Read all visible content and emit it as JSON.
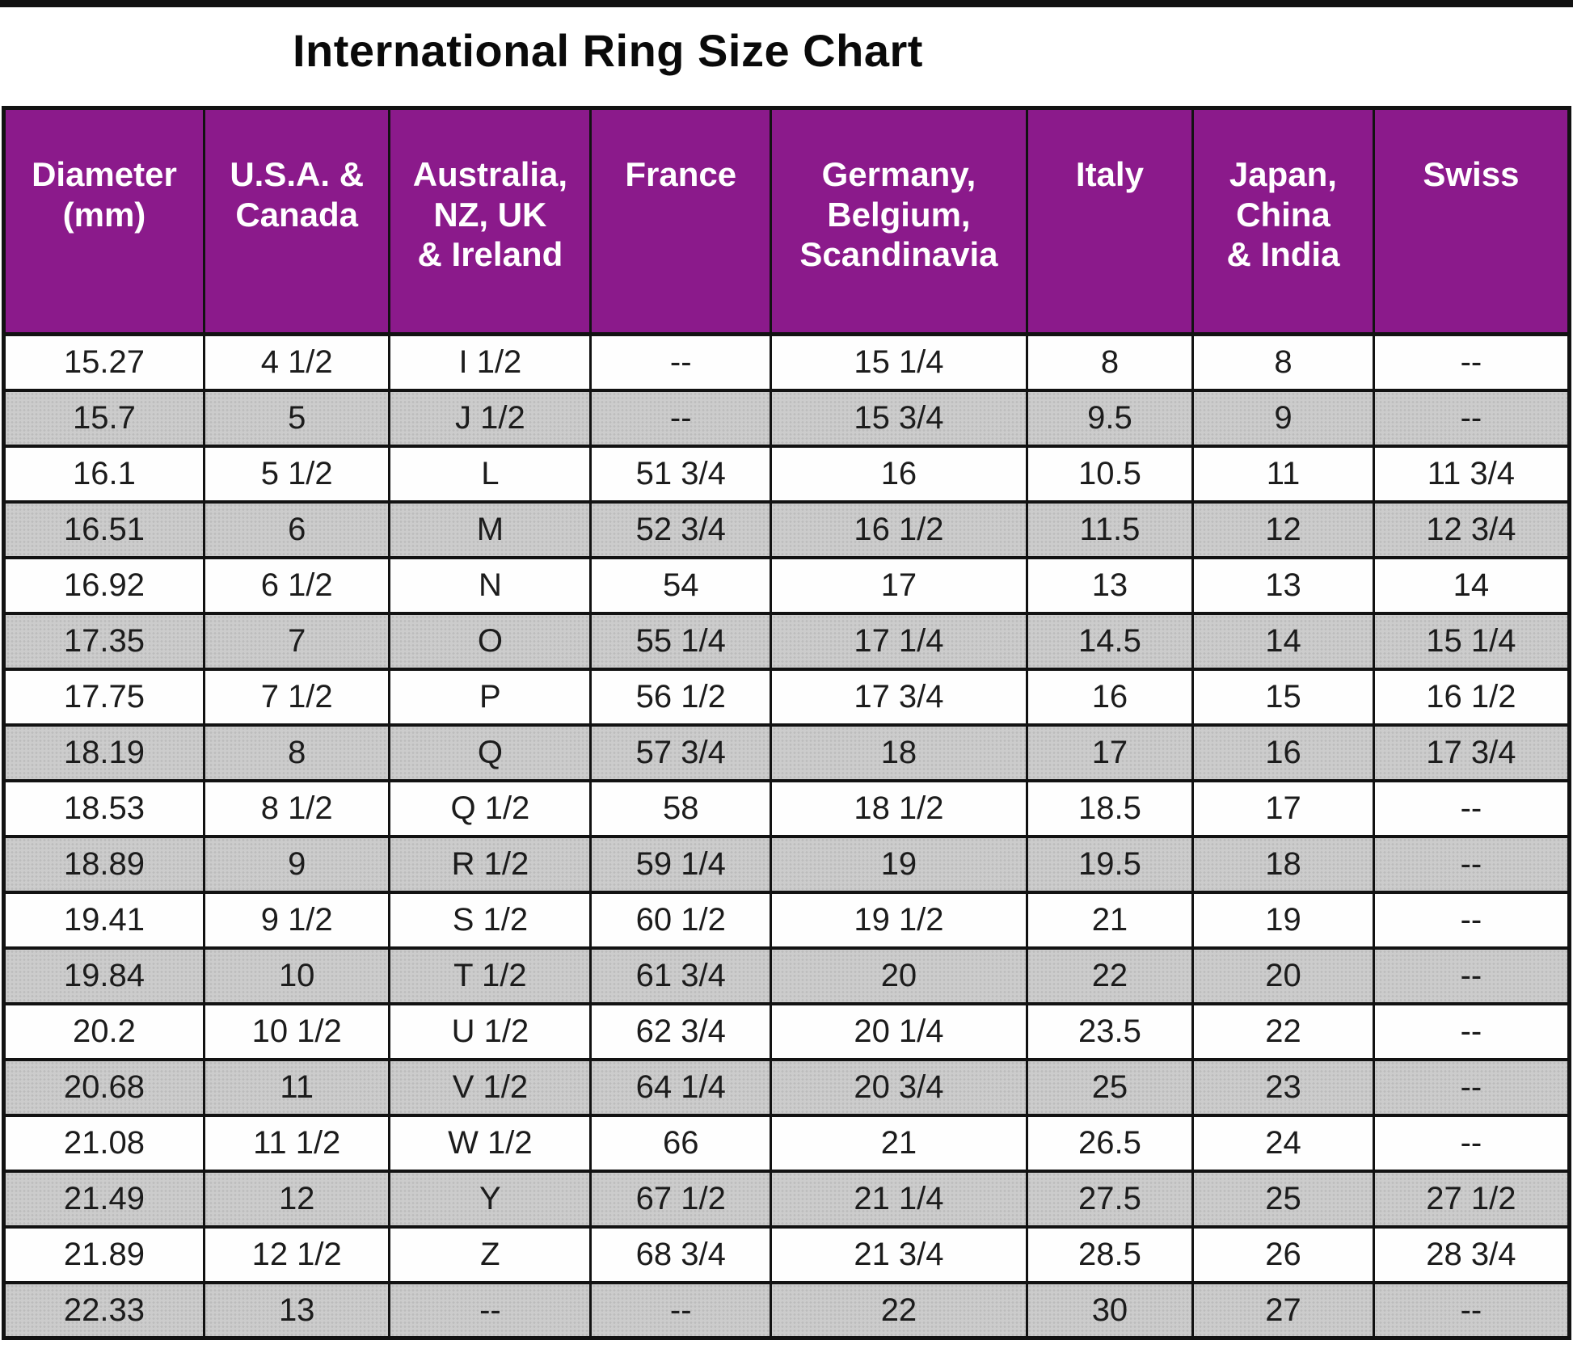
{
  "title": "International Ring Size Chart",
  "colors": {
    "header_background": "#8b1a8b",
    "header_text": "#ffffff",
    "shaded_row": "#cccccc",
    "plain_row": "#fefefe",
    "border": "#121212",
    "title_text": "#0a0a0a"
  },
  "chart_data": {
    "type": "table",
    "title": "International Ring Size Chart",
    "columns": [
      "Diameter\n(mm)",
      "U.S.A. &\nCanada",
      "Australia,\nNZ, UK\n& Ireland",
      "France",
      "Germany,\nBelgium,\nScandinavia",
      "Italy",
      "Japan,\nChina\n& India",
      "Swiss"
    ],
    "rows": [
      [
        "15.27",
        "4 1/2",
        "I 1/2",
        "--",
        "15 1/4",
        "8",
        "8",
        "--"
      ],
      [
        "15.7",
        "5",
        "J 1/2",
        "--",
        "15 3/4",
        "9.5",
        "9",
        "--"
      ],
      [
        "16.1",
        "5 1/2",
        "L",
        "51 3/4",
        "16",
        "10.5",
        "11",
        "11 3/4"
      ],
      [
        "16.51",
        "6",
        "M",
        "52 3/4",
        "16 1/2",
        "11.5",
        "12",
        "12 3/4"
      ],
      [
        "16.92",
        "6 1/2",
        "N",
        "54",
        "17",
        "13",
        "13",
        "14"
      ],
      [
        "17.35",
        "7",
        "O",
        "55 1/4",
        "17 1/4",
        "14.5",
        "14",
        "15 1/4"
      ],
      [
        "17.75",
        "7 1/2",
        "P",
        "56 1/2",
        "17 3/4",
        "16",
        "15",
        "16 1/2"
      ],
      [
        "18.19",
        "8",
        "Q",
        "57 3/4",
        "18",
        "17",
        "16",
        "17 3/4"
      ],
      [
        "18.53",
        "8 1/2",
        "Q 1/2",
        "58",
        "18 1/2",
        "18.5",
        "17",
        "--"
      ],
      [
        "18.89",
        "9",
        "R 1/2",
        "59 1/4",
        "19",
        "19.5",
        "18",
        "--"
      ],
      [
        "19.41",
        "9 1/2",
        "S 1/2",
        "60 1/2",
        "19 1/2",
        "21",
        "19",
        "--"
      ],
      [
        "19.84",
        "10",
        "T 1/2",
        "61 3/4",
        "20",
        "22",
        "20",
        "--"
      ],
      [
        "20.2",
        "10 1/2",
        "U 1/2",
        "62 3/4",
        "20 1/4",
        "23.5",
        "22",
        "--"
      ],
      [
        "20.68",
        "11",
        "V 1/2",
        "64 1/4",
        "20 3/4",
        "25",
        "23",
        "--"
      ],
      [
        "21.08",
        "11 1/2",
        "W 1/2",
        "66",
        "21",
        "26.5",
        "24",
        "--"
      ],
      [
        "21.49",
        "12",
        "Y",
        "67 1/2",
        "21 1/4",
        "27.5",
        "25",
        "27 1/2"
      ],
      [
        "21.89",
        "12 1/2",
        "Z",
        "68 3/4",
        "21 3/4",
        "28.5",
        "26",
        "28 3/4"
      ],
      [
        "22.33",
        "13",
        "--",
        "--",
        "22",
        "30",
        "27",
        "--"
      ]
    ]
  }
}
